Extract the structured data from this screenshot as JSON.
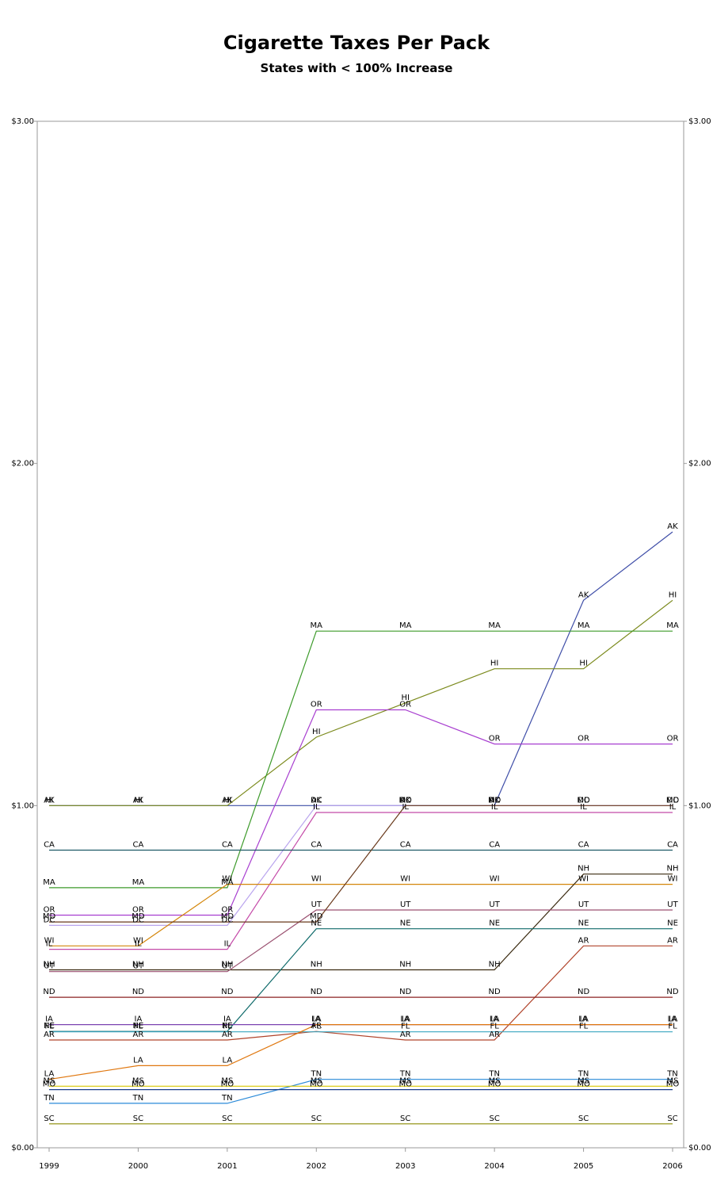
{
  "title": "Cigarette Taxes Per Pack",
  "subtitle": "States with < 100% Increase",
  "chart_data": {
    "type": "line",
    "title": "Cigarette Taxes Per Pack",
    "subtitle": "States with < 100% Increase",
    "xlabel": "",
    "ylabel": "",
    "x": [
      "1999",
      "2000",
      "2001",
      "2002",
      "2003",
      "2004",
      "2005",
      "2006"
    ],
    "ylim": [
      0,
      3
    ],
    "yticks": [
      "$0.00",
      "$1.00",
      "$2.00",
      "$3.00"
    ],
    "y_axis_both_sides": true,
    "grid": false,
    "legend": "none (state codes labelled at each point)",
    "series": [
      {
        "name": "AK",
        "color": "#3f4ea8",
        "values": [
          1.0,
          1.0,
          1.0,
          1.0,
          1.0,
          1.0,
          1.6,
          1.8
        ]
      },
      {
        "name": "HI",
        "color": "#7b8a1c",
        "values": [
          1.0,
          1.0,
          1.0,
          1.2,
          1.3,
          1.4,
          1.4,
          1.6
        ]
      },
      {
        "name": "MA",
        "color": "#3c9a2a",
        "values": [
          0.76,
          0.76,
          0.76,
          1.51,
          1.51,
          1.51,
          1.51,
          1.51
        ]
      },
      {
        "name": "OR",
        "color": "#a83fd0",
        "values": [
          0.68,
          0.68,
          0.68,
          1.28,
          1.28,
          1.18,
          1.18,
          1.18
        ]
      },
      {
        "name": "DC",
        "color": "#b9a4ee",
        "values": [
          0.65,
          0.65,
          0.65,
          1.0,
          1.0,
          1.0,
          1.0,
          1.0
        ]
      },
      {
        "name": "IL",
        "color": "#c44aa8",
        "values": [
          0.58,
          0.58,
          0.58,
          0.98,
          0.98,
          0.98,
          0.98,
          0.98
        ]
      },
      {
        "name": "CA",
        "color": "#1e5a66",
        "values": [
          0.87,
          0.87,
          0.87,
          0.87,
          0.87,
          0.87,
          0.87,
          0.87
        ]
      },
      {
        "name": "WI",
        "color": "#d4860a",
        "values": [
          0.59,
          0.59,
          0.77,
          0.77,
          0.77,
          0.77,
          0.77,
          0.77
        ]
      },
      {
        "name": "NH",
        "color": "#3a2a10",
        "values": [
          0.52,
          0.52,
          0.52,
          0.52,
          0.52,
          0.52,
          0.8,
          0.8
        ]
      },
      {
        "name": "UT",
        "color": "#9a5070",
        "values": [
          0.515,
          0.515,
          0.515,
          0.695,
          0.695,
          0.695,
          0.695,
          0.695
        ]
      },
      {
        "name": "MD",
        "color": "#6a3a1c",
        "values": [
          0.66,
          0.66,
          0.66,
          0.66,
          1.0,
          1.0,
          1.0,
          1.0
        ]
      },
      {
        "name": "NE",
        "color": "#0e6a6a",
        "values": [
          0.34,
          0.34,
          0.34,
          0.64,
          0.64,
          0.64,
          0.64,
          0.64
        ]
      },
      {
        "name": "AR",
        "color": "#b0432a",
        "values": [
          0.315,
          0.315,
          0.315,
          0.34,
          0.315,
          0.315,
          0.59,
          0.59
        ]
      },
      {
        "name": "ND",
        "color": "#8c2020",
        "values": [
          0.44,
          0.44,
          0.44,
          0.44,
          0.44,
          0.44,
          0.44,
          0.44
        ]
      },
      {
        "name": "FL",
        "color": "#3aa6c0",
        "values": [
          0.339,
          0.339,
          0.339,
          0.339,
          0.339,
          0.339,
          0.339,
          0.339
        ]
      },
      {
        "name": "IA",
        "color": "#7a42b0",
        "values": [
          0.36,
          0.36,
          0.36,
          0.36,
          0.36,
          0.36,
          0.36,
          0.36
        ]
      },
      {
        "name": "LA",
        "color": "#e07810",
        "values": [
          0.2,
          0.24,
          0.24,
          0.36,
          0.36,
          0.36,
          0.36,
          0.36
        ]
      },
      {
        "name": "TN",
        "color": "#2a8ad8",
        "values": [
          0.13,
          0.13,
          0.13,
          0.2,
          0.2,
          0.2,
          0.2,
          0.2
        ]
      },
      {
        "name": "MO",
        "color": "#1a3e8a",
        "values": [
          0.17,
          0.17,
          0.17,
          0.17,
          0.17,
          0.17,
          0.17,
          0.17
        ]
      },
      {
        "name": "MS",
        "color": "#d8c800",
        "values": [
          0.18,
          0.18,
          0.18,
          0.18,
          0.18,
          0.18,
          0.18,
          0.18
        ]
      },
      {
        "name": "SC",
        "color": "#8a8a00",
        "values": [
          0.07,
          0.07,
          0.07,
          0.07,
          0.07,
          0.07,
          0.07,
          0.07
        ]
      }
    ]
  }
}
